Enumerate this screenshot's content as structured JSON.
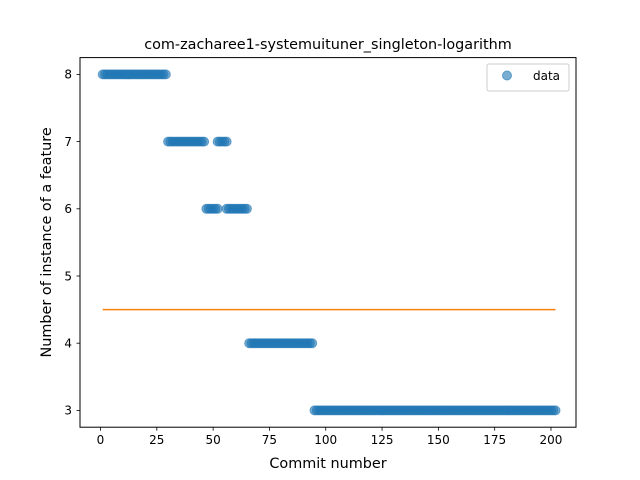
{
  "chart_data": {
    "type": "scatter",
    "title": "com-zacharee1-systemuituner_singleton-logarithm",
    "xlabel": "Commit number",
    "ylabel": "Number of instance of a feature",
    "xlim": [
      -9.1,
      211.1
    ],
    "ylim": [
      2.75,
      8.25
    ],
    "xticks": [
      0,
      25,
      50,
      75,
      100,
      125,
      150,
      175,
      200
    ],
    "yticks": [
      3,
      4,
      5,
      6,
      7,
      8
    ],
    "legend": {
      "position": "top-right",
      "entries": [
        "data"
      ]
    },
    "grid": false,
    "colors": {
      "points": "#1f77b4",
      "line": "#ff7f0e"
    },
    "series": [
      {
        "name": "data",
        "kind": "points",
        "segments": [
          {
            "x_start": 1,
            "x_end": 29,
            "y": 8
          },
          {
            "x_start": 30,
            "x_end": 46,
            "y": 7
          },
          {
            "x_start": 52,
            "x_end": 56,
            "y": 7
          },
          {
            "x_start": 47,
            "x_end": 52,
            "y": 6
          },
          {
            "x_start": 56,
            "x_end": 65,
            "y": 6
          },
          {
            "x_start": 66,
            "x_end": 94,
            "y": 4
          },
          {
            "x_start": 95,
            "x_end": 202,
            "y": 3
          }
        ]
      },
      {
        "kind": "line",
        "x": [
          1,
          202
        ],
        "y": [
          4.5,
          4.5
        ]
      }
    ]
  }
}
